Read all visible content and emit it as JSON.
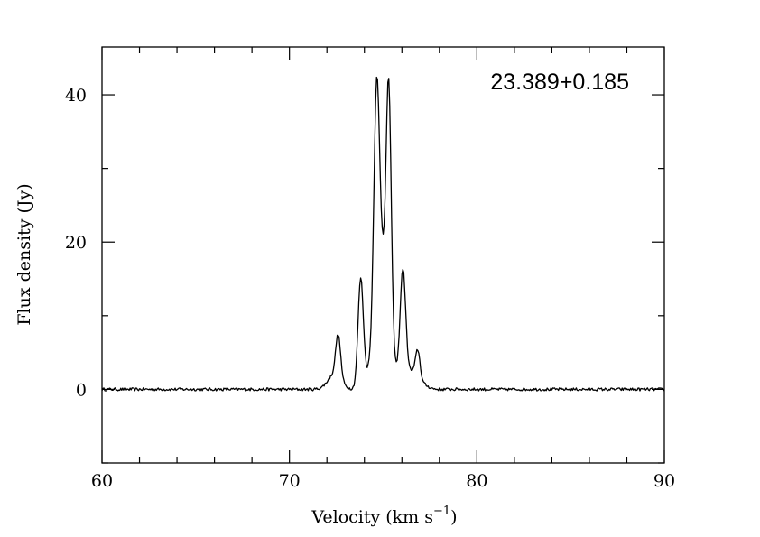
{
  "chart_data": {
    "type": "line",
    "title": "",
    "annotation": "23.389+0.185",
    "xlabel": "Velocity (km s",
    "xlabel_unit_exponent": "−1",
    "xlabel_close": ")",
    "ylabel": "Flux density (Jy)",
    "xlim": [
      60,
      90
    ],
    "ylim": [
      -10,
      46.5
    ],
    "x_major_ticks": [
      60,
      70,
      80,
      90
    ],
    "x_tick_labels": [
      "60",
      "70",
      "80",
      "90"
    ],
    "x_minor_step": 2,
    "y_major_ticks": [
      0,
      20,
      40
    ],
    "y_tick_labels": [
      "0",
      "20",
      "40"
    ],
    "y_minor_ticks": [
      -10,
      10,
      30
    ],
    "grid": false,
    "line_color": "#000000",
    "noise_level": 0.2,
    "baseline_level": 0,
    "x_step": 0.05,
    "peaks": [
      {
        "v": 72.4,
        "amp": 2.0,
        "width": 0.35
      },
      {
        "v": 72.6,
        "amp": 5.8,
        "width": 0.13
      },
      {
        "v": 73.8,
        "amp": 14.5,
        "width": 0.14
      },
      {
        "v": 74.2,
        "amp": 1.5,
        "width": 0.3
      },
      {
        "v": 74.65,
        "amp": 31.5,
        "width": 0.15
      },
      {
        "v": 75.0,
        "amp": 17.0,
        "width": 0.35
      },
      {
        "v": 75.3,
        "amp": 30.5,
        "width": 0.13
      },
      {
        "v": 76.05,
        "amp": 15.5,
        "width": 0.15
      },
      {
        "v": 76.5,
        "amp": 2.3,
        "width": 0.3
      },
      {
        "v": 76.85,
        "amp": 3.8,
        "width": 0.12
      },
      {
        "v": 77.1,
        "amp": 0.6,
        "width": 0.3
      }
    ]
  }
}
